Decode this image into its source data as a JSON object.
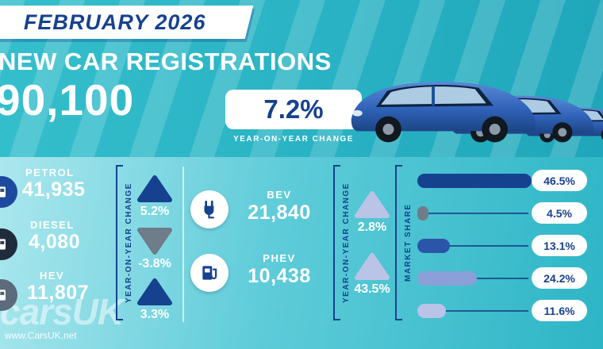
{
  "colors": {
    "dark_blue": "#16418f",
    "teal": "#28b2c3",
    "stripe_light": "#4fc9d5",
    "gray": "#6f7c8a",
    "lavender": "#8ba0d8",
    "light_lavender": "#b9c4e6",
    "white": "#ffffff"
  },
  "header": {
    "banner": "FEBRUARY 2026",
    "title": "NEW CAR REGISTRATIONS",
    "total": "90,100",
    "yoy_value": "7.2%",
    "yoy_label": "YEAR-ON-YEAR CHANGE"
  },
  "yoy_axis_label": "YEAR-ON-YEAR CHANGE",
  "fuels_left": [
    {
      "label": "PETROL",
      "value": "41,935",
      "change": "5.2%",
      "direction": "up",
      "arrow_color": "#16418f",
      "icon": "fuel-pump-icon",
      "icon_color": "#1d4a9e"
    },
    {
      "label": "DIESEL",
      "value": "4,080",
      "change": "-3.8%",
      "direction": "down",
      "arrow_color": "#6f7c8a",
      "icon": "fuel-pump-icon",
      "icon_color": "#1f2c3c"
    },
    {
      "label": "HEV",
      "value": "11,807",
      "change": "3.3%",
      "direction": "up",
      "arrow_color": "#16418f",
      "icon": "fuel-pump-icon",
      "icon_color": "#5b6b7c"
    }
  ],
  "fuels_right": [
    {
      "label": "BEV",
      "value": "21,840",
      "change": "2.8%",
      "direction": "up",
      "arrow_color": "#b9c4e6",
      "icon": "charging-plug-icon"
    },
    {
      "label": "PHEV",
      "value": "10,438",
      "change": "43.5%",
      "direction": "up",
      "arrow_color": "#b9c4e6",
      "icon": "pump-plug-icon"
    }
  ],
  "market_share": {
    "label": "MARKET SHARE",
    "bars": [
      {
        "display": "46.5%",
        "value": 46.5,
        "color": "#16418f"
      },
      {
        "display": "4.5%",
        "value": 4.5,
        "color": "#6f7c8a"
      },
      {
        "display": "13.1%",
        "value": 13.1,
        "color": "#2a55a8"
      },
      {
        "display": "24.2%",
        "value": 24.2,
        "color": "#8ba0d8"
      },
      {
        "display": "11.6%",
        "value": 11.6,
        "color": "#b9c4e6"
      }
    ]
  },
  "watermark": {
    "logo": "carsUK",
    "url": "www.CarsUK.net"
  },
  "chart_data": [
    {
      "type": "table",
      "title": "NEW CAR REGISTRATIONS — FEBRUARY 2026",
      "total_registrations": 90100,
      "total_yoy_change_pct": 7.2,
      "categories": [
        "PETROL",
        "DIESEL",
        "HEV",
        "BEV",
        "PHEV"
      ],
      "series": [
        {
          "name": "Registrations",
          "values": [
            41935,
            4080,
            11807,
            21840,
            10438
          ]
        },
        {
          "name": "Year-on-year change %",
          "values": [
            5.2,
            -3.8,
            3.3,
            2.8,
            43.5
          ]
        }
      ]
    },
    {
      "type": "bar",
      "title": "MARKET SHARE",
      "orientation": "horizontal",
      "categories": [
        "PETROL",
        "DIESEL",
        "HEV",
        "BEV",
        "PHEV"
      ],
      "values": [
        46.5,
        4.5,
        13.1,
        24.2,
        11.6
      ],
      "unit": "%",
      "xlim": [
        0,
        50
      ]
    }
  ]
}
